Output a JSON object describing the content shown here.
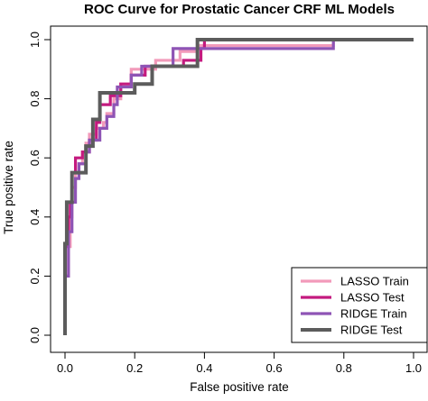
{
  "chart_data": {
    "type": "line",
    "title": "ROC Curve for Prostatic Cancer CRF ML Models",
    "xlabel": "False positive rate",
    "ylabel": "True positive rate",
    "xlim": [
      0.0,
      1.0
    ],
    "ylim": [
      0.0,
      1.0
    ],
    "x_ticks": [
      "0.0",
      "0.2",
      "0.4",
      "0.6",
      "0.8",
      "1.0"
    ],
    "y_ticks": [
      "0.0",
      "0.2",
      "0.4",
      "0.6",
      "0.8",
      "1.0"
    ],
    "grid": false,
    "legend_position": "bottom-right",
    "series": [
      {
        "name": "LASSO Train",
        "color": "#f29aba",
        "points": [
          [
            0.0,
            0.0
          ],
          [
            0.0,
            0.2
          ],
          [
            0.01,
            0.2
          ],
          [
            0.01,
            0.3
          ],
          [
            0.015,
            0.3
          ],
          [
            0.015,
            0.4
          ],
          [
            0.02,
            0.4
          ],
          [
            0.02,
            0.5
          ],
          [
            0.03,
            0.5
          ],
          [
            0.03,
            0.55
          ],
          [
            0.04,
            0.55
          ],
          [
            0.04,
            0.58
          ],
          [
            0.05,
            0.58
          ],
          [
            0.05,
            0.62
          ],
          [
            0.06,
            0.62
          ],
          [
            0.06,
            0.65
          ],
          [
            0.07,
            0.65
          ],
          [
            0.07,
            0.68
          ],
          [
            0.09,
            0.68
          ],
          [
            0.09,
            0.7
          ],
          [
            0.11,
            0.7
          ],
          [
            0.11,
            0.72
          ],
          [
            0.12,
            0.72
          ],
          [
            0.12,
            0.75
          ],
          [
            0.14,
            0.75
          ],
          [
            0.14,
            0.8
          ],
          [
            0.16,
            0.8
          ],
          [
            0.16,
            0.85
          ],
          [
            0.19,
            0.85
          ],
          [
            0.19,
            0.9
          ],
          [
            0.26,
            0.9
          ],
          [
            0.26,
            0.93
          ],
          [
            0.33,
            0.93
          ],
          [
            0.33,
            0.96
          ],
          [
            0.38,
            0.96
          ],
          [
            0.38,
            0.98
          ],
          [
            0.77,
            0.98
          ],
          [
            0.77,
            1.0
          ],
          [
            1.0,
            1.0
          ]
        ]
      },
      {
        "name": "LASSO Test",
        "color": "#c41a7f",
        "points": [
          [
            0.0,
            0.0
          ],
          [
            0.0,
            0.3
          ],
          [
            0.01,
            0.3
          ],
          [
            0.01,
            0.4
          ],
          [
            0.015,
            0.4
          ],
          [
            0.015,
            0.45
          ],
          [
            0.02,
            0.45
          ],
          [
            0.02,
            0.55
          ],
          [
            0.03,
            0.55
          ],
          [
            0.03,
            0.6
          ],
          [
            0.05,
            0.6
          ],
          [
            0.05,
            0.62
          ],
          [
            0.07,
            0.62
          ],
          [
            0.07,
            0.66
          ],
          [
            0.09,
            0.66
          ],
          [
            0.09,
            0.72
          ],
          [
            0.1,
            0.72
          ],
          [
            0.1,
            0.78
          ],
          [
            0.13,
            0.78
          ],
          [
            0.13,
            0.81
          ],
          [
            0.16,
            0.81
          ],
          [
            0.16,
            0.85
          ],
          [
            0.19,
            0.85
          ],
          [
            0.19,
            0.88
          ],
          [
            0.23,
            0.88
          ],
          [
            0.23,
            0.91
          ],
          [
            0.34,
            0.91
          ],
          [
            0.34,
            0.93
          ],
          [
            0.39,
            0.93
          ],
          [
            0.39,
            0.97
          ],
          [
            0.4,
            0.97
          ],
          [
            0.4,
            1.0
          ],
          [
            1.0,
            1.0
          ]
        ]
      },
      {
        "name": "RIDGE Train",
        "color": "#8e54b5",
        "points": [
          [
            0.0,
            0.0
          ],
          [
            0.0,
            0.2
          ],
          [
            0.01,
            0.2
          ],
          [
            0.01,
            0.35
          ],
          [
            0.02,
            0.35
          ],
          [
            0.02,
            0.45
          ],
          [
            0.03,
            0.45
          ],
          [
            0.03,
            0.53
          ],
          [
            0.04,
            0.53
          ],
          [
            0.04,
            0.58
          ],
          [
            0.06,
            0.58
          ],
          [
            0.06,
            0.62
          ],
          [
            0.07,
            0.62
          ],
          [
            0.07,
            0.66
          ],
          [
            0.1,
            0.66
          ],
          [
            0.1,
            0.7
          ],
          [
            0.12,
            0.7
          ],
          [
            0.12,
            0.74
          ],
          [
            0.14,
            0.74
          ],
          [
            0.14,
            0.78
          ],
          [
            0.15,
            0.78
          ],
          [
            0.15,
            0.84
          ],
          [
            0.19,
            0.84
          ],
          [
            0.19,
            0.88
          ],
          [
            0.22,
            0.88
          ],
          [
            0.22,
            0.91
          ],
          [
            0.31,
            0.91
          ],
          [
            0.31,
            0.97
          ],
          [
            0.77,
            0.97
          ],
          [
            0.77,
            1.0
          ],
          [
            1.0,
            1.0
          ]
        ]
      },
      {
        "name": "RIDGE Test",
        "color": "#5c5c5c",
        "points": [
          [
            0.0,
            0.0
          ],
          [
            0.0,
            0.31
          ],
          [
            0.005,
            0.31
          ],
          [
            0.005,
            0.45
          ],
          [
            0.02,
            0.45
          ],
          [
            0.02,
            0.55
          ],
          [
            0.06,
            0.55
          ],
          [
            0.06,
            0.64
          ],
          [
            0.08,
            0.64
          ],
          [
            0.08,
            0.73
          ],
          [
            0.1,
            0.73
          ],
          [
            0.1,
            0.82
          ],
          [
            0.2,
            0.82
          ],
          [
            0.2,
            0.85
          ],
          [
            0.25,
            0.85
          ],
          [
            0.25,
            0.91
          ],
          [
            0.38,
            0.91
          ],
          [
            0.38,
            1.0
          ],
          [
            1.0,
            1.0
          ]
        ]
      }
    ]
  }
}
